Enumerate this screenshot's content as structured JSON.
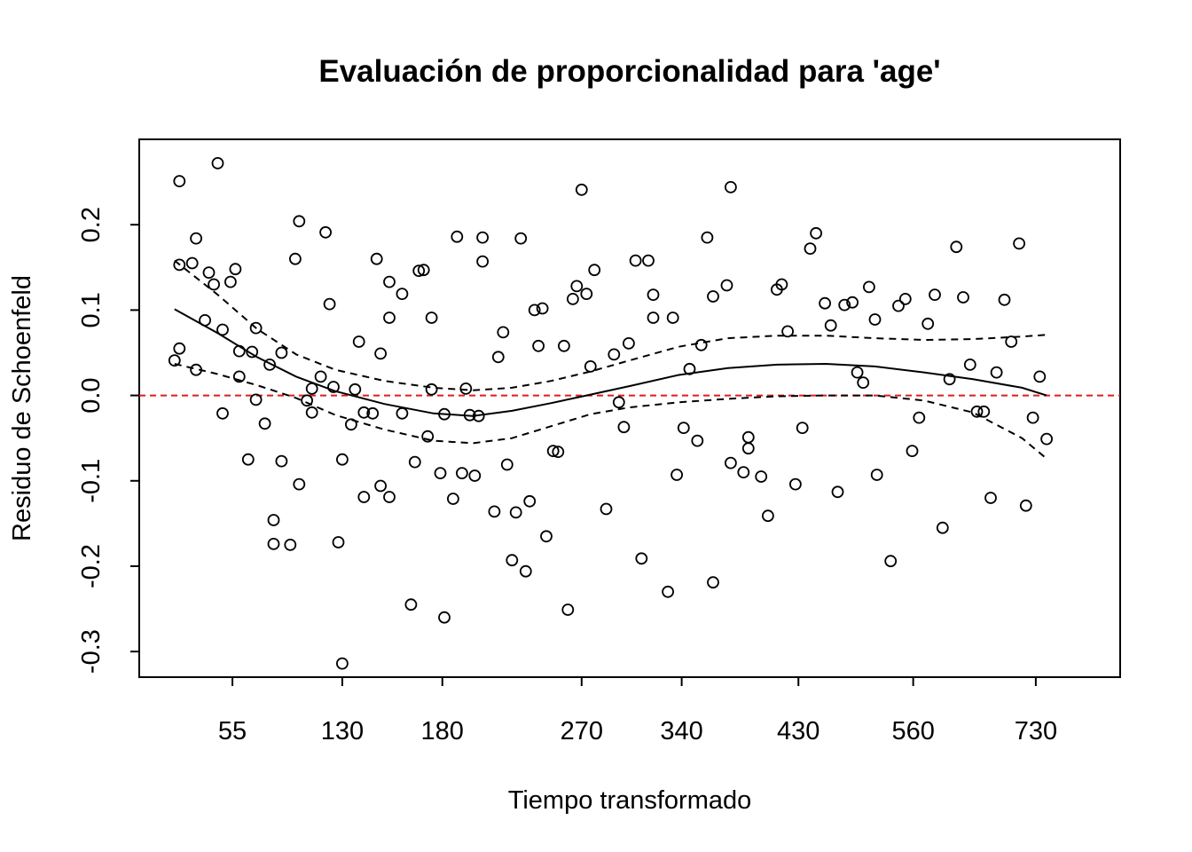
{
  "chart_data": {
    "type": "scatter",
    "title": "Evaluación de proporcionalidad para 'age'",
    "xlabel": "Tiempo transformado",
    "ylabel": "Residuo de Schoenfeld",
    "x_scale": "rank (transformed time)",
    "xlim": [
      0,
      1
    ],
    "ylim": [
      -0.33,
      0.3
    ],
    "x_ticks": [
      {
        "pos": 0.095,
        "label": "55"
      },
      {
        "pos": 0.207,
        "label": "130"
      },
      {
        "pos": 0.309,
        "label": "180"
      },
      {
        "pos": 0.451,
        "label": "270"
      },
      {
        "pos": 0.553,
        "label": "340"
      },
      {
        "pos": 0.672,
        "label": "430"
      },
      {
        "pos": 0.789,
        "label": "560"
      },
      {
        "pos": 0.914,
        "label": "730"
      }
    ],
    "y_ticks": [
      {
        "value": 0.2,
        "label": "0.2"
      },
      {
        "value": 0.1,
        "label": "0.1"
      },
      {
        "value": 0.0,
        "label": "0.0"
      },
      {
        "value": -0.1,
        "label": "-0.1"
      },
      {
        "value": -0.2,
        "label": "-0.2"
      },
      {
        "value": -0.3,
        "label": "-0.3"
      }
    ],
    "reference_line": {
      "y": 0.0,
      "color": "#e41a1c",
      "style": "dashed"
    },
    "points": [
      [
        0.036,
        0.041
      ],
      [
        0.041,
        0.251
      ],
      [
        0.041,
        0.153
      ],
      [
        0.041,
        0.055
      ],
      [
        0.054,
        0.155
      ],
      [
        0.058,
        0.184
      ],
      [
        0.058,
        0.03
      ],
      [
        0.067,
        0.088
      ],
      [
        0.071,
        0.144
      ],
      [
        0.076,
        0.13
      ],
      [
        0.08,
        0.272
      ],
      [
        0.085,
        0.077
      ],
      [
        0.085,
        -0.021
      ],
      [
        0.093,
        0.133
      ],
      [
        0.098,
        0.148
      ],
      [
        0.102,
        0.052
      ],
      [
        0.102,
        0.022
      ],
      [
        0.111,
        -0.075
      ],
      [
        0.115,
        0.051
      ],
      [
        0.119,
        0.079
      ],
      [
        0.119,
        -0.005
      ],
      [
        0.128,
        -0.033
      ],
      [
        0.133,
        0.036
      ],
      [
        0.137,
        -0.146
      ],
      [
        0.137,
        -0.174
      ],
      [
        0.145,
        0.05
      ],
      [
        0.145,
        -0.077
      ],
      [
        0.154,
        -0.175
      ],
      [
        0.159,
        0.16
      ],
      [
        0.163,
        0.204
      ],
      [
        0.163,
        -0.104
      ],
      [
        0.171,
        -0.006
      ],
      [
        0.176,
        0.008
      ],
      [
        0.176,
        -0.02
      ],
      [
        0.185,
        0.022
      ],
      [
        0.19,
        0.191
      ],
      [
        0.194,
        0.107
      ],
      [
        0.198,
        0.01
      ],
      [
        0.203,
        -0.172
      ],
      [
        0.207,
        -0.075
      ],
      [
        0.207,
        -0.314
      ],
      [
        0.216,
        -0.034
      ],
      [
        0.22,
        0.007
      ],
      [
        0.224,
        0.063
      ],
      [
        0.229,
        -0.02
      ],
      [
        0.229,
        -0.119
      ],
      [
        0.238,
        -0.021
      ],
      [
        0.242,
        0.16
      ],
      [
        0.246,
        0.049
      ],
      [
        0.246,
        -0.106
      ],
      [
        0.255,
        0.133
      ],
      [
        0.255,
        0.091
      ],
      [
        0.255,
        -0.119
      ],
      [
        0.268,
        0.119
      ],
      [
        0.268,
        -0.021
      ],
      [
        0.277,
        -0.245
      ],
      [
        0.281,
        -0.078
      ],
      [
        0.285,
        0.146
      ],
      [
        0.29,
        0.147
      ],
      [
        0.294,
        -0.048
      ],
      [
        0.298,
        0.007
      ],
      [
        0.298,
        0.091
      ],
      [
        0.307,
        -0.091
      ],
      [
        0.311,
        -0.022
      ],
      [
        0.311,
        -0.26
      ],
      [
        0.32,
        -0.121
      ],
      [
        0.324,
        0.186
      ],
      [
        0.329,
        -0.091
      ],
      [
        0.333,
        0.008
      ],
      [
        0.337,
        -0.023
      ],
      [
        0.342,
        -0.094
      ],
      [
        0.346,
        -0.024
      ],
      [
        0.35,
        0.185
      ],
      [
        0.35,
        0.157
      ],
      [
        0.362,
        -0.136
      ],
      [
        0.366,
        0.045
      ],
      [
        0.371,
        0.074
      ],
      [
        0.375,
        -0.081
      ],
      [
        0.38,
        -0.193
      ],
      [
        0.384,
        -0.137
      ],
      [
        0.389,
        0.184
      ],
      [
        0.394,
        -0.206
      ],
      [
        0.398,
        -0.124
      ],
      [
        0.403,
        0.1
      ],
      [
        0.407,
        0.058
      ],
      [
        0.411,
        0.102
      ],
      [
        0.415,
        -0.165
      ],
      [
        0.422,
        -0.065
      ],
      [
        0.427,
        -0.066
      ],
      [
        0.433,
        0.058
      ],
      [
        0.437,
        -0.251
      ],
      [
        0.442,
        0.113
      ],
      [
        0.446,
        0.128
      ],
      [
        0.451,
        0.241
      ],
      [
        0.456,
        0.119
      ],
      [
        0.46,
        0.034
      ],
      [
        0.464,
        0.147
      ],
      [
        0.476,
        -0.133
      ],
      [
        0.484,
        0.048
      ],
      [
        0.489,
        -0.008
      ],
      [
        0.494,
        -0.037
      ],
      [
        0.499,
        0.061
      ],
      [
        0.506,
        0.158
      ],
      [
        0.512,
        -0.191
      ],
      [
        0.519,
        0.158
      ],
      [
        0.524,
        0.118
      ],
      [
        0.524,
        0.091
      ],
      [
        0.539,
        -0.23
      ],
      [
        0.544,
        0.091
      ],
      [
        0.548,
        -0.093
      ],
      [
        0.555,
        -0.038
      ],
      [
        0.561,
        0.031
      ],
      [
        0.569,
        -0.053
      ],
      [
        0.573,
        0.059
      ],
      [
        0.579,
        0.185
      ],
      [
        0.585,
        0.116
      ],
      [
        0.585,
        -0.219
      ],
      [
        0.599,
        0.129
      ],
      [
        0.603,
        0.244
      ],
      [
        0.603,
        -0.079
      ],
      [
        0.616,
        -0.09
      ],
      [
        0.621,
        -0.062
      ],
      [
        0.621,
        -0.049
      ],
      [
        0.634,
        -0.095
      ],
      [
        0.641,
        -0.141
      ],
      [
        0.65,
        0.124
      ],
      [
        0.655,
        0.13
      ],
      [
        0.661,
        0.075
      ],
      [
        0.669,
        -0.104
      ],
      [
        0.676,
        -0.038
      ],
      [
        0.684,
        0.172
      ],
      [
        0.69,
        0.19
      ],
      [
        0.699,
        0.108
      ],
      [
        0.705,
        0.082
      ],
      [
        0.712,
        -0.113
      ],
      [
        0.719,
        0.106
      ],
      [
        0.727,
        0.109
      ],
      [
        0.732,
        0.027
      ],
      [
        0.738,
        0.015
      ],
      [
        0.744,
        0.127
      ],
      [
        0.75,
        0.089
      ],
      [
        0.752,
        -0.093
      ],
      [
        0.766,
        -0.194
      ],
      [
        0.774,
        0.105
      ],
      [
        0.781,
        0.113
      ],
      [
        0.788,
        -0.065
      ],
      [
        0.795,
        -0.026
      ],
      [
        0.804,
        0.084
      ],
      [
        0.811,
        0.118
      ],
      [
        0.819,
        -0.155
      ],
      [
        0.826,
        0.019
      ],
      [
        0.833,
        0.174
      ],
      [
        0.84,
        0.115
      ],
      [
        0.847,
        0.036
      ],
      [
        0.854,
        -0.019
      ],
      [
        0.861,
        -0.019
      ],
      [
        0.868,
        -0.12
      ],
      [
        0.874,
        0.027
      ],
      [
        0.882,
        0.112
      ],
      [
        0.889,
        0.063
      ],
      [
        0.897,
        0.178
      ],
      [
        0.904,
        -0.129
      ],
      [
        0.911,
        -0.026
      ],
      [
        0.918,
        0.022
      ],
      [
        0.925,
        -0.051
      ]
    ],
    "fit_lines": [
      {
        "role": "smoothed fit",
        "style": "solid",
        "points": [
          [
            0.036,
            0.101
          ],
          [
            0.08,
            0.073
          ],
          [
            0.12,
            0.045
          ],
          [
            0.16,
            0.022
          ],
          [
            0.2,
            0.005
          ],
          [
            0.25,
            -0.01
          ],
          [
            0.3,
            -0.021
          ],
          [
            0.34,
            -0.024
          ],
          [
            0.38,
            -0.018
          ],
          [
            0.42,
            -0.009
          ],
          [
            0.46,
            0.001
          ],
          [
            0.5,
            0.011
          ],
          [
            0.55,
            0.024
          ],
          [
            0.6,
            0.032
          ],
          [
            0.65,
            0.036
          ],
          [
            0.7,
            0.037
          ],
          [
            0.75,
            0.034
          ],
          [
            0.8,
            0.027
          ],
          [
            0.85,
            0.019
          ],
          [
            0.9,
            0.009
          ],
          [
            0.925,
            0.0
          ]
        ]
      },
      {
        "role": "upper confidence band",
        "style": "dashed",
        "points": [
          [
            0.036,
            0.158
          ],
          [
            0.08,
            0.118
          ],
          [
            0.12,
            0.078
          ],
          [
            0.16,
            0.048
          ],
          [
            0.2,
            0.03
          ],
          [
            0.25,
            0.017
          ],
          [
            0.3,
            0.009
          ],
          [
            0.34,
            0.006
          ],
          [
            0.38,
            0.009
          ],
          [
            0.42,
            0.017
          ],
          [
            0.46,
            0.028
          ],
          [
            0.5,
            0.041
          ],
          [
            0.55,
            0.057
          ],
          [
            0.6,
            0.067
          ],
          [
            0.65,
            0.07
          ],
          [
            0.7,
            0.07
          ],
          [
            0.75,
            0.067
          ],
          [
            0.8,
            0.065
          ],
          [
            0.85,
            0.066
          ],
          [
            0.9,
            0.069
          ],
          [
            0.925,
            0.071
          ]
        ]
      },
      {
        "role": "lower confidence band",
        "style": "dashed",
        "points": [
          [
            0.036,
            0.037
          ],
          [
            0.08,
            0.025
          ],
          [
            0.12,
            0.012
          ],
          [
            0.16,
            -0.003
          ],
          [
            0.2,
            -0.023
          ],
          [
            0.25,
            -0.04
          ],
          [
            0.3,
            -0.053
          ],
          [
            0.34,
            -0.056
          ],
          [
            0.38,
            -0.05
          ],
          [
            0.42,
            -0.036
          ],
          [
            0.46,
            -0.022
          ],
          [
            0.5,
            -0.014
          ],
          [
            0.55,
            -0.008
          ],
          [
            0.6,
            -0.004
          ],
          [
            0.65,
            -0.001
          ],
          [
            0.7,
            0.0
          ],
          [
            0.75,
            0.0
          ],
          [
            0.8,
            -0.006
          ],
          [
            0.85,
            -0.02
          ],
          [
            0.9,
            -0.05
          ],
          [
            0.925,
            -0.074
          ]
        ]
      }
    ],
    "grid": false,
    "legend": "none"
  }
}
